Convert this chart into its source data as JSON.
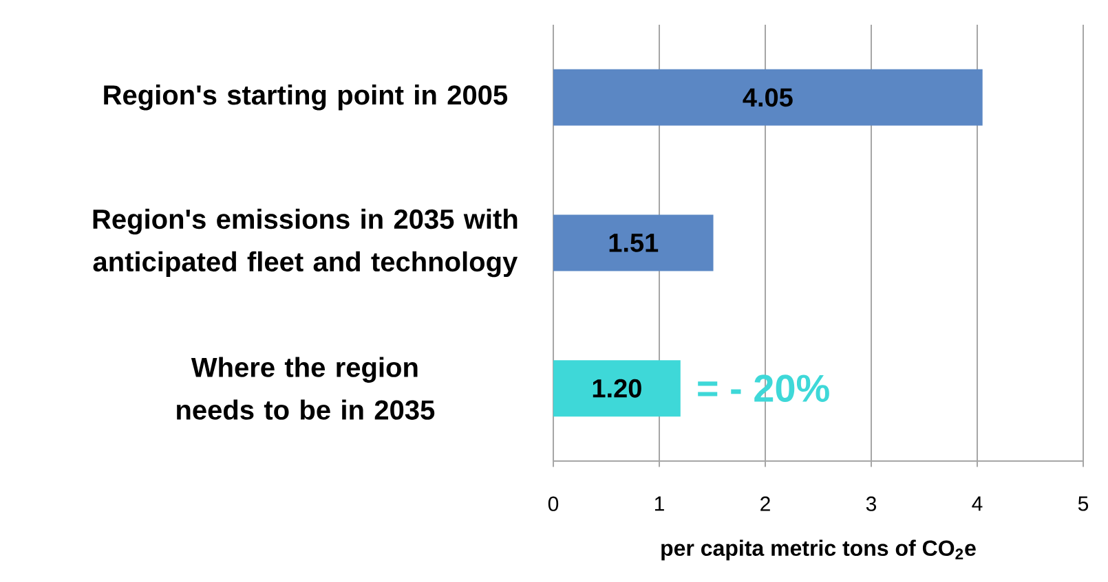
{
  "chart_data": {
    "type": "bar",
    "orientation": "horizontal",
    "categories": [
      "Region's starting point in 2005",
      "Region's emissions in 2035 with anticipated fleet and technology",
      "Where the region needs to be in 2035"
    ],
    "values": [
      4.05,
      1.51,
      1.2
    ],
    "value_labels": [
      "4.05",
      "1.51",
      "1.20"
    ],
    "colors": [
      "#5b87c4",
      "#5b87c4",
      "#3ed8d8"
    ],
    "xlabel": "per capita metric tons of CO$_{2}$e",
    "xlim": [
      0,
      5
    ],
    "xticks": [
      0,
      1,
      2,
      3,
      4,
      5
    ],
    "grid": "x",
    "annotations": [
      "= - 20%"
    ]
  }
}
